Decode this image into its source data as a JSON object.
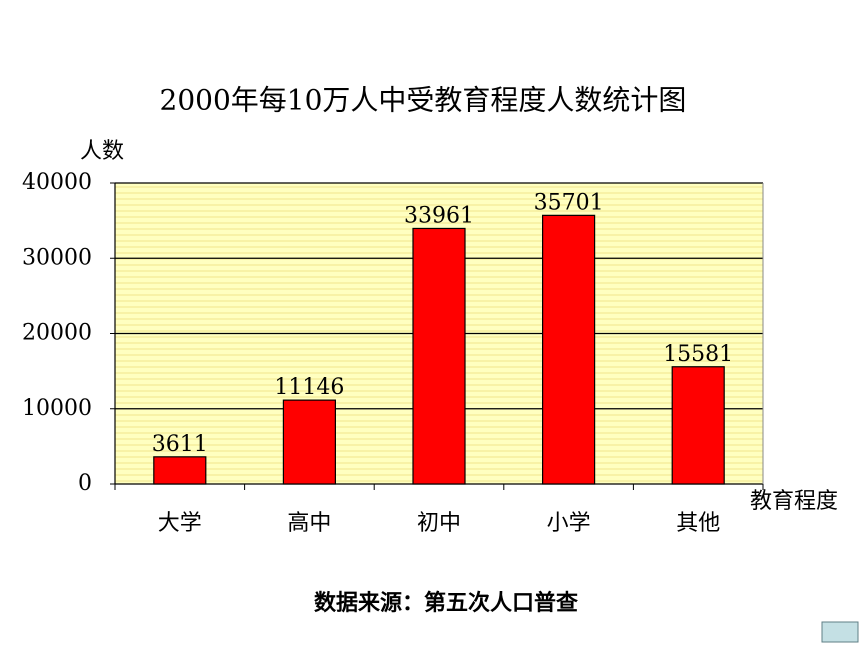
{
  "chart_data": {
    "type": "bar",
    "title": "2000年每10万人中受教育程度人数统计图",
    "y_label": "人数",
    "x_label": "教育程度",
    "note": "数据来源：第五次人口普查",
    "categories": [
      "大学",
      "高中",
      "初中",
      "小学",
      "其他"
    ],
    "values": [
      3611,
      11146,
      33961,
      35701,
      15581
    ],
    "color": "#ff0000",
    "ylim": [
      0,
      40000
    ],
    "yticks": [
      0,
      10000,
      20000,
      30000,
      40000
    ],
    "grid": true
  }
}
